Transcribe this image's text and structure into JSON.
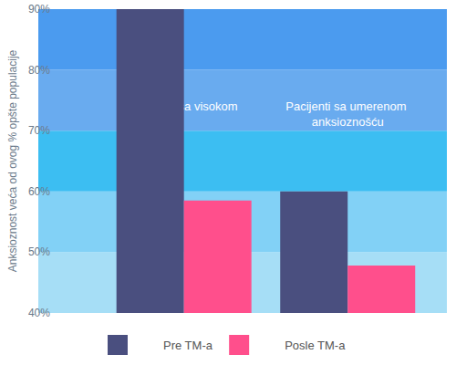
{
  "chart_data": {
    "type": "bar",
    "categories": [
      "Pacijenti sa visokom",
      "Pacijenti sa umerenom anksioznošću"
    ],
    "series": [
      {
        "name": "Pre TM-a",
        "color": "#4a4f7f",
        "values": [
          90,
          60
        ]
      },
      {
        "name": "Posle TM-a",
        "color": "#ff4f8c",
        "values": [
          58.5,
          47.8
        ]
      }
    ],
    "ylabel": "Anksioznost veća od ovog % opšte populacije",
    "ylim": [
      40,
      90
    ],
    "yticks": [
      {
        "value": 40,
        "label": "40%"
      },
      {
        "value": 50,
        "label": "50%"
      },
      {
        "value": 60,
        "label": "60%"
      },
      {
        "value": 70,
        "label": "70%"
      },
      {
        "value": 80,
        "label": "80%"
      },
      {
        "value": 90,
        "label": "90%"
      }
    ],
    "grid": false,
    "legend": "bottom"
  }
}
